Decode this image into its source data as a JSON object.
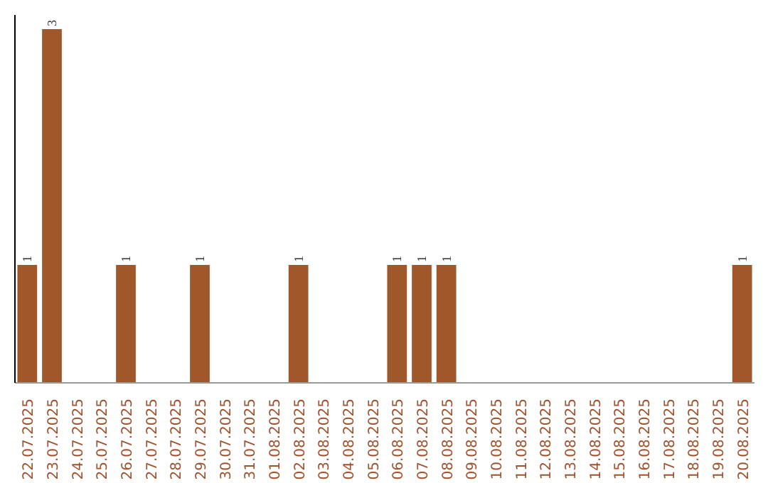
{
  "chart_data": {
    "type": "bar",
    "categories": [
      "22.07.2025",
      "23.07.2025",
      "24.07.2025",
      "25.07.2025",
      "26.07.2025",
      "27.07.2025",
      "28.07.2025",
      "29.07.2025",
      "30.07.2025",
      "31.07.2025",
      "01.08.2025",
      "02.08.2025",
      "03.08.2025",
      "04.08.2025",
      "05.08.2025",
      "06.08.2025",
      "07.08.2025",
      "08.08.2025",
      "09.08.2025",
      "10.08.2025",
      "11.08.2025",
      "12.08.2025",
      "13.08.2025",
      "14.08.2025",
      "15.08.2025",
      "16.08.2025",
      "17.08.2025",
      "18.08.2025",
      "19.08.2025",
      "20.08.2025"
    ],
    "values": [
      1,
      3,
      0,
      0,
      1,
      0,
      0,
      1,
      0,
      0,
      0,
      1,
      0,
      0,
      0,
      1,
      1,
      1,
      0,
      0,
      0,
      0,
      0,
      0,
      0,
      0,
      0,
      0,
      0,
      1
    ],
    "value_labels": [
      "1",
      "3",
      null,
      null,
      "1",
      null,
      null,
      "1",
      null,
      null,
      null,
      "1",
      null,
      null,
      null,
      "1",
      "1",
      "1",
      null,
      null,
      null,
      null,
      null,
      null,
      null,
      null,
      null,
      null,
      null,
      "1"
    ],
    "color": "#a0582a"
  }
}
